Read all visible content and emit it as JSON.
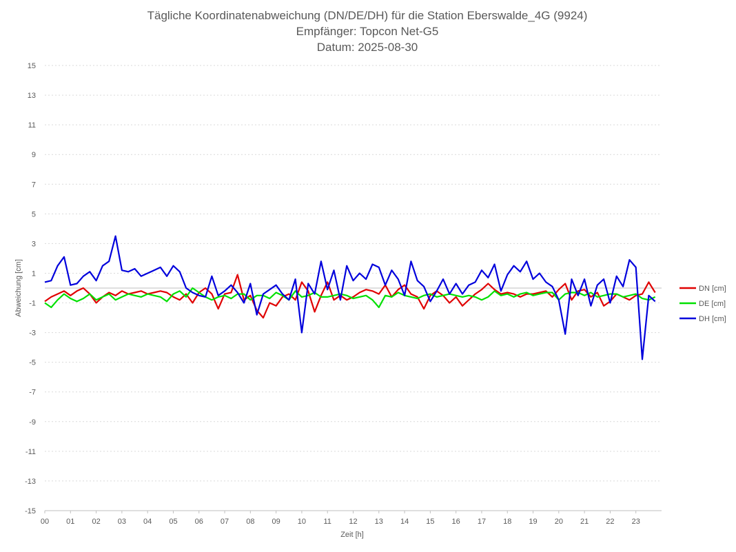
{
  "chart_data": {
    "type": "line",
    "title": [
      "Tägliche Koordinatenabweichung (DN/DE/DH) für die Station Eberswalde_4G (9924)",
      "Empfänger: Topcon Net-G5",
      "Datum: 2025-08-30"
    ],
    "xlabel": "Zeit [h]",
    "ylabel": "Abweichung [cm]",
    "xlim": [
      0,
      24
    ],
    "ylim": [
      -15,
      15
    ],
    "x_ticks": [
      "00",
      "01",
      "02",
      "03",
      "04",
      "05",
      "06",
      "07",
      "08",
      "09",
      "10",
      "11",
      "12",
      "13",
      "14",
      "15",
      "16",
      "17",
      "18",
      "19",
      "20",
      "21",
      "22",
      "23"
    ],
    "y_ticks": [
      15,
      13,
      11,
      9,
      7,
      5,
      3,
      1,
      -1,
      -3,
      -5,
      -7,
      -9,
      -11,
      -13,
      -15
    ],
    "grid": true,
    "legend_position": "right",
    "x": [
      0,
      0.25,
      0.5,
      0.75,
      1,
      1.25,
      1.5,
      1.75,
      2,
      2.25,
      2.5,
      2.75,
      3,
      3.25,
      3.5,
      3.75,
      4,
      4.25,
      4.5,
      4.75,
      5,
      5.25,
      5.5,
      5.75,
      6,
      6.25,
      6.5,
      6.75,
      7,
      7.25,
      7.5,
      7.75,
      8,
      8.25,
      8.5,
      8.75,
      9,
      9.25,
      9.5,
      9.75,
      10,
      10.25,
      10.5,
      10.75,
      11,
      11.25,
      11.5,
      11.75,
      12,
      12.25,
      12.5,
      12.75,
      13,
      13.25,
      13.5,
      13.75,
      14,
      14.25,
      14.5,
      14.75,
      15,
      15.25,
      15.5,
      15.75,
      16,
      16.25,
      16.5,
      16.75,
      17,
      17.25,
      17.5,
      17.75,
      18,
      18.25,
      18.5,
      18.75,
      19,
      19.25,
      19.5,
      19.75,
      20,
      20.25,
      20.5,
      20.75,
      21,
      21.25,
      21.5,
      21.75,
      22,
      22.25,
      22.5,
      22.75,
      23,
      23.25,
      23.5,
      23.75
    ],
    "series": [
      {
        "name": "DN [cm]",
        "color": "#e00000",
        "values": [
          -0.9,
          -0.6,
          -0.4,
          -0.2,
          -0.5,
          -0.2,
          0,
          -0.4,
          -1.0,
          -0.6,
          -0.3,
          -0.5,
          -0.2,
          -0.4,
          -0.3,
          -0.2,
          -0.4,
          -0.3,
          -0.2,
          -0.3,
          -0.6,
          -0.8,
          -0.4,
          -1.0,
          -0.3,
          0,
          -0.4,
          -1.4,
          -0.4,
          -0.3,
          0.9,
          -0.8,
          -0.5,
          -1.5,
          -2.0,
          -1.0,
          -1.2,
          -0.6,
          -0.4,
          -0.8,
          0.4,
          -0.2,
          -1.6,
          -0.5,
          0.4,
          -0.8,
          -0.5,
          -0.8,
          -0.6,
          -0.3,
          -0.1,
          -0.2,
          -0.4,
          0.2,
          -0.6,
          -0.1,
          0.2,
          -0.4,
          -0.6,
          -1.4,
          -0.5,
          -0.2,
          -0.5,
          -1.0,
          -0.6,
          -1.2,
          -0.8,
          -0.4,
          -0.1,
          0.3,
          -0.1,
          -0.4,
          -0.3,
          -0.4,
          -0.6,
          -0.4,
          -0.4,
          -0.3,
          -0.2,
          -0.6,
          -0.1,
          0.3,
          -0.8,
          -0.2,
          -0.1,
          -0.6,
          -0.3,
          -1.2,
          -0.9,
          -0.4,
          -0.6,
          -0.8,
          -0.5,
          -0.4,
          0.4,
          -0.3
        ]
      },
      {
        "name": "DE [cm]",
        "color": "#00e000",
        "values": [
          -1.0,
          -1.3,
          -0.8,
          -0.4,
          -0.7,
          -0.9,
          -0.7,
          -0.4,
          -0.8,
          -0.6,
          -0.4,
          -0.8,
          -0.6,
          -0.4,
          -0.5,
          -0.6,
          -0.4,
          -0.5,
          -0.6,
          -0.9,
          -0.4,
          -0.2,
          -0.6,
          0.0,
          -0.3,
          -0.6,
          -0.8,
          -0.6,
          -0.5,
          -0.7,
          -0.4,
          -0.4,
          -0.8,
          -0.5,
          -0.5,
          -0.7,
          -0.3,
          -0.5,
          -0.8,
          -0.2,
          -0.6,
          -0.5,
          -0.3,
          -0.6,
          -0.6,
          -0.5,
          -0.4,
          -0.5,
          -0.7,
          -0.6,
          -0.5,
          -0.8,
          -1.3,
          -0.5,
          -0.6,
          -0.3,
          -0.5,
          -0.6,
          -0.7,
          -0.5,
          -0.4,
          -0.6,
          -0.5,
          -0.4,
          -0.5,
          -0.6,
          -0.5,
          -0.6,
          -0.8,
          -0.6,
          -0.2,
          -0.5,
          -0.4,
          -0.6,
          -0.4,
          -0.3,
          -0.5,
          -0.4,
          -0.3,
          -0.3,
          -0.8,
          -0.4,
          -0.3,
          -0.3,
          -0.5,
          -0.3,
          -0.6,
          -0.5,
          -0.4,
          -0.4,
          -0.6,
          -0.5,
          -0.4,
          -0.7,
          -0.8,
          -0.6
        ]
      },
      {
        "name": "DH [cm]",
        "color": "#0000dc",
        "values": [
          0.4,
          0.5,
          1.5,
          2.1,
          0.2,
          0.3,
          0.8,
          1.1,
          0.5,
          1.5,
          1.8,
          3.5,
          1.2,
          1.1,
          1.3,
          0.8,
          1.0,
          1.2,
          1.4,
          0.8,
          1.5,
          1.1,
          0.0,
          -0.3,
          -0.5,
          -0.6,
          0.8,
          -0.5,
          -0.2,
          0.2,
          -0.3,
          -1.0,
          0.3,
          -1.8,
          -0.4,
          -0.1,
          0.2,
          -0.4,
          -0.8,
          0.6,
          -3.0,
          0.3,
          -0.4,
          1.8,
          -0.1,
          1.2,
          -0.8,
          1.5,
          0.5,
          1.0,
          0.6,
          1.6,
          1.4,
          0.2,
          1.2,
          0.6,
          -0.5,
          1.8,
          0.5,
          0.1,
          -0.9,
          -0.2,
          0.6,
          -0.4,
          0.3,
          -0.4,
          0.2,
          0.4,
          1.2,
          0.7,
          1.6,
          -0.2,
          0.9,
          1.5,
          1.1,
          1.8,
          0.6,
          1.0,
          0.4,
          0.1,
          -0.8,
          -3.1,
          0.6,
          -0.5,
          0.6,
          -1.2,
          0.2,
          0.6,
          -1.0,
          0.8,
          0.1,
          1.9,
          1.4,
          -4.8,
          -0.5,
          -0.9
        ]
      }
    ]
  }
}
